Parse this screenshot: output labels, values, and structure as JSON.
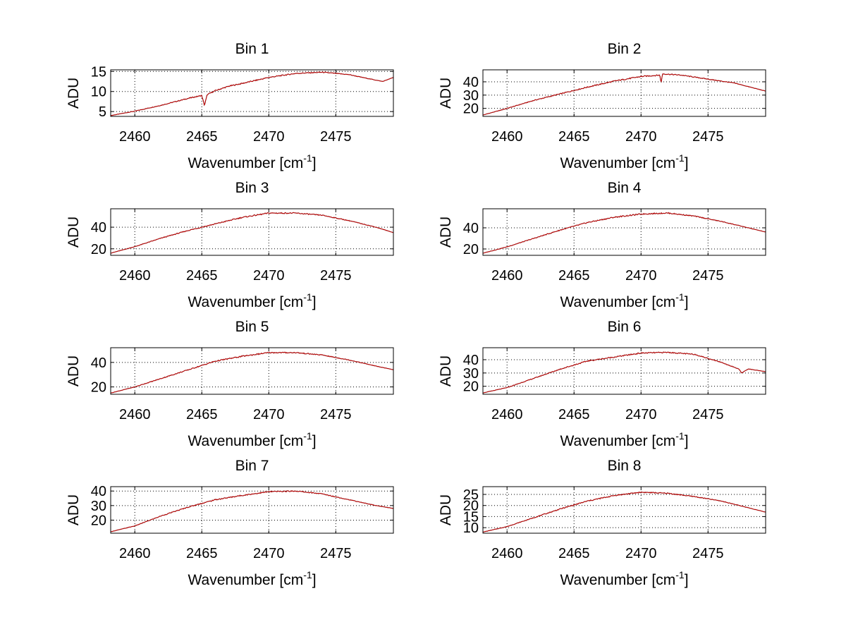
{
  "colors": {
    "line": "#c00000",
    "line_shadow": "#000000",
    "axis": "#000000",
    "grid": "#000000",
    "background": "#ffffff"
  },
  "chart_data": [
    {
      "type": "line",
      "title": "Bin 1",
      "xlabel": {
        "base": "Wavenumber [cm",
        "sup": "-1",
        "close": "]"
      },
      "ylabel": "ADU",
      "xlim": [
        2458.2,
        2479.3
      ],
      "ylim": [
        3.8,
        15.4
      ],
      "xticks": [
        "2460",
        "2465",
        "2470",
        "2475"
      ],
      "yticks": [
        "5",
        "10",
        "15"
      ],
      "grid": true,
      "series": [
        {
          "x": [
            2458.2,
            2460,
            2462,
            2464,
            2465,
            2465.2,
            2465.4,
            2466,
            2467,
            2468,
            2470,
            2472,
            2474,
            2476,
            2477,
            2478.5,
            2479.3
          ],
          "values": [
            4,
            5.1,
            6.6,
            8.3,
            9.0,
            6.5,
            9.2,
            10.2,
            11.3,
            12.0,
            13.5,
            14.5,
            14.8,
            14.2,
            13.5,
            12.5,
            13.5
          ]
        }
      ]
    },
    {
      "type": "line",
      "title": "Bin 2",
      "xlabel": {
        "base": "Wavenumber [cm",
        "sup": "-1",
        "close": "]"
      },
      "ylabel": "ADU",
      "xlim": [
        2458.2,
        2479.3
      ],
      "ylim": [
        14,
        49
      ],
      "xticks": [
        "2460",
        "2465",
        "2470",
        "2475"
      ],
      "yticks": [
        "20",
        "30",
        "40"
      ],
      "grid": true,
      "series": [
        {
          "x": [
            2458.2,
            2460,
            2462,
            2464,
            2466,
            2468,
            2470,
            2471.4,
            2471.5,
            2471.6,
            2473,
            2475,
            2477,
            2479.3
          ],
          "values": [
            15,
            20,
            26,
            31,
            36,
            40.5,
            44,
            45,
            39,
            46,
            45,
            42,
            39,
            33
          ]
        }
      ]
    },
    {
      "type": "line",
      "title": "Bin 3",
      "xlabel": {
        "base": "Wavenumber [cm",
        "sup": "-1",
        "close": "]"
      },
      "ylabel": "ADU",
      "xlim": [
        2458.2,
        2479.3
      ],
      "ylim": [
        14,
        57
      ],
      "xticks": [
        "2460",
        "2465",
        "2470",
        "2475"
      ],
      "yticks": [
        "20",
        "40"
      ],
      "grid": true,
      "series": [
        {
          "x": [
            2458.2,
            2460,
            2462,
            2464,
            2466,
            2468,
            2470,
            2472,
            2474,
            2476,
            2478,
            2479.3
          ],
          "values": [
            16,
            22,
            30,
            37,
            43,
            49,
            53,
            53,
            51,
            46,
            40,
            35
          ]
        }
      ]
    },
    {
      "type": "line",
      "title": "Bin 4",
      "xlabel": {
        "base": "Wavenumber [cm",
        "sup": "-1",
        "close": "]"
      },
      "ylabel": "ADU",
      "xlim": [
        2458.2,
        2479.3
      ],
      "ylim": [
        14,
        58
      ],
      "xticks": [
        "2460",
        "2465",
        "2470",
        "2475"
      ],
      "yticks": [
        "20",
        "40"
      ],
      "grid": true,
      "series": [
        {
          "x": [
            2458.2,
            2460,
            2462,
            2464,
            2466,
            2468,
            2470,
            2472,
            2474,
            2476,
            2478,
            2479.3
          ],
          "values": [
            16,
            22,
            30,
            38,
            45,
            50,
            53,
            54,
            51,
            46,
            40,
            36
          ]
        }
      ]
    },
    {
      "type": "line",
      "title": "Bin 5",
      "xlabel": {
        "base": "Wavenumber [cm",
        "sup": "-1",
        "close": "]"
      },
      "ylabel": "ADU",
      "xlim": [
        2458.2,
        2479.3
      ],
      "ylim": [
        14,
        52
      ],
      "xticks": [
        "2460",
        "2465",
        "2470",
        "2475"
      ],
      "yticks": [
        "20",
        "40"
      ],
      "grid": true,
      "series": [
        {
          "x": [
            2458.2,
            2460,
            2462,
            2464,
            2466,
            2468,
            2470,
            2472,
            2474,
            2476,
            2478,
            2479.3
          ],
          "values": [
            15,
            20,
            27,
            34,
            41,
            45,
            48,
            48,
            46,
            42,
            37,
            34
          ]
        }
      ]
    },
    {
      "type": "line",
      "title": "Bin 6",
      "xlabel": {
        "base": "Wavenumber [cm",
        "sup": "-1",
        "close": "]"
      },
      "ylabel": "ADU",
      "xlim": [
        2458.2,
        2479.3
      ],
      "ylim": [
        14,
        49
      ],
      "xticks": [
        "2460",
        "2465",
        "2470",
        "2475"
      ],
      "yticks": [
        "20",
        "30",
        "40"
      ],
      "grid": true,
      "series": [
        {
          "x": [
            2458.2,
            2460,
            2462,
            2464,
            2466,
            2468,
            2470,
            2472,
            2474,
            2476,
            2477.3,
            2477.5,
            2478,
            2479.3
          ],
          "values": [
            15,
            19,
            26,
            33,
            39,
            42,
            45,
            45.5,
            44,
            38,
            33,
            30,
            33,
            31
          ]
        }
      ]
    },
    {
      "type": "line",
      "title": "Bin 7",
      "xlabel": {
        "base": "Wavenumber [cm",
        "sup": "-1",
        "close": "]"
      },
      "ylabel": "ADU",
      "xlim": [
        2458.2,
        2479.3
      ],
      "ylim": [
        11,
        43
      ],
      "xticks": [
        "2460",
        "2465",
        "2470",
        "2475"
      ],
      "yticks": [
        "20",
        "30",
        "40"
      ],
      "grid": true,
      "series": [
        {
          "x": [
            2458.2,
            2460,
            2462,
            2464,
            2466,
            2468,
            2470,
            2472,
            2474,
            2476,
            2478,
            2479.3
          ],
          "values": [
            12,
            16,
            23,
            29,
            34,
            37,
            39.5,
            40,
            38,
            34,
            30,
            28
          ]
        }
      ]
    },
    {
      "type": "line",
      "title": "Bin 8",
      "xlabel": {
        "base": "Wavenumber [cm",
        "sup": "-1",
        "close": "]"
      },
      "ylabel": "ADU",
      "xlim": [
        2458.2,
        2479.3
      ],
      "ylim": [
        7.5,
        28.5
      ],
      "xticks": [
        "2460",
        "2465",
        "2470",
        "2475"
      ],
      "yticks": [
        "10",
        "15",
        "20",
        "25"
      ],
      "grid": true,
      "series": [
        {
          "x": [
            2458.2,
            2460,
            2462,
            2464,
            2466,
            2468,
            2470,
            2472,
            2474,
            2476,
            2478,
            2479.3
          ],
          "values": [
            8,
            10.5,
            14.5,
            18.5,
            22,
            24.5,
            26,
            25.5,
            24,
            22,
            19,
            17
          ]
        }
      ]
    }
  ]
}
